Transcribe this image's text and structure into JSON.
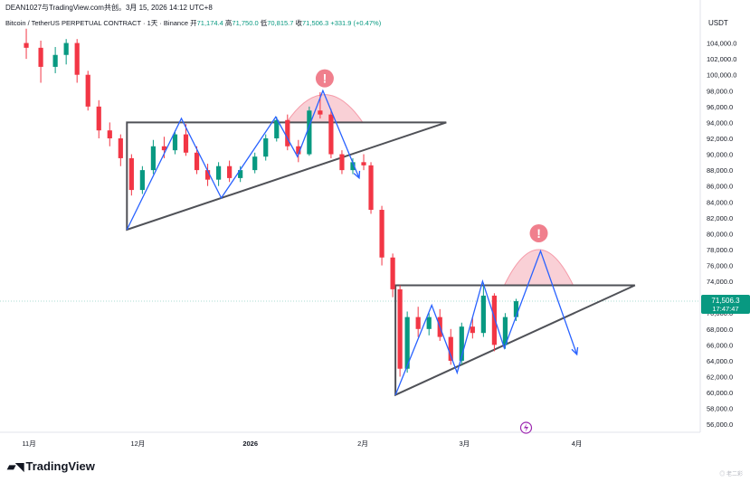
{
  "header": {
    "published_by": "DEAN1027与TradingView.com共创。3月 15, 2026 14:12 UTC+8",
    "symbol": "Bitcoin / TetherUS PERPETUAL CONTRACT",
    "interval": "1天",
    "exchange": "Binance",
    "open_label": "开",
    "open": "71,174.4",
    "high_label": "高",
    "high": "71,750.0",
    "low_label": "低",
    "low": "70,815.7",
    "close_label": "收",
    "close": "71,506.3",
    "change": "+331.9 (+0.47%)"
  },
  "price_tag": {
    "price": "71,506.3",
    "countdown": "17:47:47"
  },
  "brand": {
    "logo_text": "TradingView",
    "watermark": "◎ 老二彩"
  },
  "colors": {
    "up": "#089981",
    "down": "#f23645",
    "pattern": "#4f5157",
    "zigzag": "#2962ff",
    "dome_fill": "#f9c8cf",
    "dome_stroke": "#f48a9b"
  },
  "chart_data": {
    "type": "candlestick",
    "quote_currency": "USDT",
    "y_axis": {
      "range": [
        55000,
        106000
      ],
      "ticks": [
        104000,
        102000,
        100000,
        98000,
        96000,
        94000,
        92000,
        90000,
        88000,
        86000,
        84000,
        82000,
        80000,
        78000,
        76000,
        74000,
        72000,
        70000,
        68000,
        66000,
        64000,
        62000,
        60000,
        58000,
        56000
      ],
      "tick_labels": [
        "104,000.0",
        "102,000.0",
        "100,000.0",
        "98,000.0",
        "96,000.0",
        "94,000.0",
        "92,000.0",
        "90,000.0",
        "88,000.0",
        "86,000.0",
        "84,000.0",
        "82,000.0",
        "80,000.0",
        "78,000.0",
        "76,000.0",
        "74,000.0",
        "72,000.0",
        "70,000.0",
        "68,000.0",
        "66,000.0",
        "64,000.0",
        "62,000.0",
        "60,000.0",
        "58,000.0",
        "56,000.0"
      ]
    },
    "x_axis": {
      "range": [
        "2025-10-26",
        "2026-05-05"
      ],
      "ticks": [
        "2025-11-01",
        "2025-12-01",
        "2026-01-01",
        "2026-02-01",
        "2026-03-01",
        "2026-04-01"
      ],
      "tick_labels": [
        "11月",
        "12月",
        "2026",
        "2月",
        "3月",
        "4月"
      ]
    },
    "last_price": 71506.3,
    "candles": [
      [
        "2025-10-30",
        104000,
        105800,
        102000,
        103400
      ],
      [
        "2025-11-03",
        103400,
        104300,
        99000,
        101000
      ],
      [
        "2025-11-07",
        101000,
        103500,
        100200,
        102500
      ],
      [
        "2025-11-10",
        102500,
        104500,
        101300,
        104000
      ],
      [
        "2025-11-13",
        104000,
        104500,
        99000,
        100000
      ],
      [
        "2025-11-16",
        100000,
        100500,
        95500,
        96000
      ],
      [
        "2025-11-19",
        96000,
        96800,
        92000,
        93000
      ],
      [
        "2025-11-22",
        93000,
        94000,
        91000,
        92000
      ],
      [
        "2025-11-25",
        92000,
        92500,
        88500,
        89500
      ],
      [
        "2025-11-28",
        89500,
        90000,
        84800,
        85500
      ],
      [
        "2025-12-01",
        85500,
        88500,
        85000,
        88000
      ],
      [
        "2025-12-04",
        88000,
        91800,
        87500,
        91000
      ],
      [
        "2025-12-07",
        91000,
        92200,
        89500,
        90500
      ],
      [
        "2025-12-10",
        90500,
        93000,
        90000,
        92500
      ],
      [
        "2025-12-13",
        92500,
        93800,
        89800,
        90200
      ],
      [
        "2025-12-16",
        90200,
        91000,
        87500,
        88000
      ],
      [
        "2025-12-19",
        88000,
        88800,
        86000,
        86800
      ],
      [
        "2025-12-22",
        86800,
        89000,
        86000,
        88500
      ],
      [
        "2025-12-25",
        88500,
        89200,
        86500,
        87000
      ],
      [
        "2025-12-28",
        87000,
        88500,
        86500,
        88000
      ],
      [
        "2026-01-01",
        88000,
        90200,
        87600,
        89700
      ],
      [
        "2026-01-04",
        89700,
        92500,
        89200,
        92000
      ],
      [
        "2026-01-07",
        92000,
        94700,
        91600,
        94300
      ],
      [
        "2026-01-10",
        94300,
        95000,
        90500,
        91000
      ],
      [
        "2026-01-13",
        91000,
        91800,
        89000,
        90000
      ],
      [
        "2026-01-16",
        90000,
        96000,
        89800,
        95500
      ],
      [
        "2026-01-19",
        95500,
        97800,
        94500,
        95000
      ],
      [
        "2026-01-22",
        95000,
        95700,
        89500,
        90000
      ],
      [
        "2026-01-25",
        90000,
        90500,
        87500,
        88000
      ],
      [
        "2026-01-28",
        88000,
        89500,
        87500,
        89000
      ],
      [
        "2026-01-31",
        89000,
        90000,
        88000,
        88600
      ],
      [
        "2026-02-02",
        88600,
        89000,
        82500,
        83000
      ],
      [
        "2026-02-05",
        83000,
        83500,
        76000,
        77000
      ],
      [
        "2026-02-08",
        77000,
        77500,
        72000,
        73000
      ],
      [
        "2026-02-10",
        73000,
        73500,
        62000,
        63000
      ],
      [
        "2026-02-12",
        63000,
        70200,
        62500,
        69500
      ],
      [
        "2026-02-15",
        69500,
        70800,
        67000,
        68000
      ],
      [
        "2026-02-18",
        68000,
        70000,
        67200,
        69500
      ],
      [
        "2026-02-21",
        69500,
        70500,
        66500,
        67000
      ],
      [
        "2026-02-24",
        67000,
        68000,
        63500,
        64000
      ],
      [
        "2026-02-27",
        64000,
        68800,
        63500,
        68300
      ],
      [
        "2026-03-02",
        68300,
        69500,
        66800,
        67500
      ],
      [
        "2026-03-05",
        67500,
        73800,
        67000,
        72200
      ],
      [
        "2026-03-08",
        72200,
        72500,
        65200,
        66000
      ],
      [
        "2026-03-11",
        66000,
        70000,
        65500,
        69500
      ],
      [
        "2026-03-14",
        69500,
        71800,
        69000,
        71500
      ]
    ],
    "annotations": {
      "upper_triangle": [
        [
          "2025-11-28",
          94000
        ],
        [
          "2026-02-24",
          94000
        ],
        [
          "2025-11-28",
          80500
        ]
      ],
      "lower_triangle": [
        [
          "2026-02-10",
          73500
        ],
        [
          "2026-04-17",
          73500
        ],
        [
          "2026-02-10",
          59700
        ]
      ],
      "upper_zigzag": [
        [
          "2025-11-28",
          80500
        ],
        [
          "2025-12-13",
          94500
        ],
        [
          "2025-12-24",
          84500
        ],
        [
          "2026-01-08",
          94700
        ],
        [
          "2026-01-14",
          89700
        ],
        [
          "2026-01-21",
          98000
        ],
        [
          "2026-01-31",
          87000
        ]
      ],
      "lower_zigzag": [
        [
          "2026-02-10",
          59700
        ],
        [
          "2026-02-20",
          71000
        ],
        [
          "2026-02-27",
          62500
        ],
        [
          "2026-03-06",
          74000
        ],
        [
          "2026-03-12",
          65600
        ],
        [
          "2026-03-22",
          77800
        ],
        [
          "2026-04-01",
          64800
        ]
      ],
      "upper_dome": {
        "start": "2026-01-11",
        "end": "2026-02-01",
        "base": 94000,
        "peak": 97500,
        "marker": "!"
      },
      "lower_dome": {
        "start": "2026-03-12",
        "end": "2026-03-31",
        "base": 73500,
        "peak": 78000,
        "marker": "!"
      },
      "event_marker": {
        "date": "2026-03-18",
        "icon": "lightning-icon"
      }
    }
  }
}
